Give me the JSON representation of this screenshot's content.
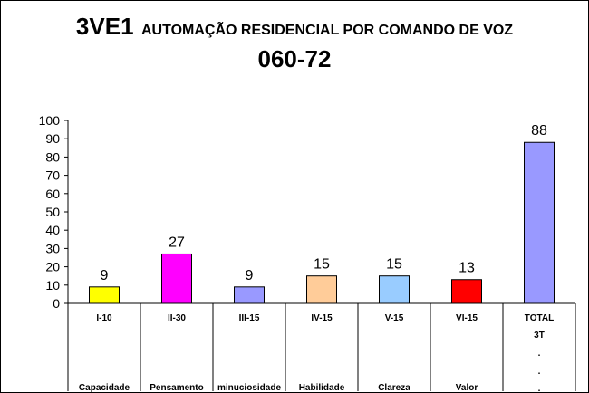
{
  "chart_data": {
    "type": "bar",
    "title_code": "3VE1",
    "title": "AUTOMAÇÃO RESIDENCIAL POR COMANDO DE VOZ",
    "subtitle": "060-72",
    "xlabel": "",
    "ylabel": "",
    "ylim": [
      0,
      100
    ],
    "yticks": [
      0,
      10,
      20,
      30,
      40,
      50,
      60,
      70,
      80,
      90,
      100
    ],
    "grid": false,
    "legend": "none",
    "categories": [
      {
        "code": "I-10",
        "name": "Capacidade",
        "value": 9,
        "color": "#FFFF00"
      },
      {
        "code": "II-30",
        "name": "Pensamento",
        "value": 27,
        "color": "#FF00FF"
      },
      {
        "code": "III-15",
        "name": "minuciosidade",
        "value": 9,
        "color": "#9999FF"
      },
      {
        "code": "IV-15",
        "name": "Habilidade",
        "value": 15,
        "color": "#FFCC99"
      },
      {
        "code": "V-15",
        "name": "Clareza",
        "value": 15,
        "color": "#99CCFF"
      },
      {
        "code": "VI-15",
        "name": "Valor",
        "value": 13,
        "color": "#FF0000"
      },
      {
        "code": "TOTAL",
        "name": "",
        "value": 88,
        "color": "#9999FF",
        "extra": [
          "3T",
          ".",
          ".",
          "."
        ]
      }
    ]
  }
}
